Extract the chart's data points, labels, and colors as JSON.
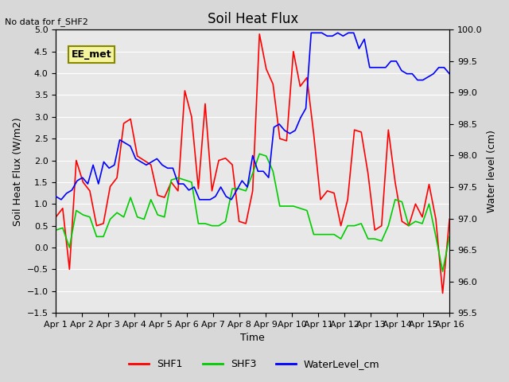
{
  "title": "Soil Heat Flux",
  "note": "No data for f_SHF2",
  "ylabel_left": "Soil Heat Flux (W/m2)",
  "ylabel_right": "Water level (cm)",
  "xlabel": "Time",
  "ylim_left": [
    -1.5,
    5.0
  ],
  "ylim_right": [
    95.5,
    100.0
  ],
  "yticks_left": [
    -1.5,
    -1.0,
    -0.5,
    0.0,
    0.5,
    1.0,
    1.5,
    2.0,
    2.5,
    3.0,
    3.5,
    4.0,
    4.5,
    5.0
  ],
  "yticks_right": [
    95.5,
    96.0,
    96.5,
    97.0,
    97.5,
    98.0,
    98.5,
    99.0,
    99.5,
    100.0
  ],
  "xtick_labels": [
    "Apr 1",
    "Apr 2",
    "Apr 3",
    "Apr 4",
    "Apr 5",
    "Apr 6",
    "Apr 7",
    "Apr 8",
    "Apr 9",
    "Apr 10",
    "Apr 11",
    "Apr 12",
    "Apr 13",
    "Apr 14",
    "Apr 15",
    "Apr 16"
  ],
  "background_color": "#e8e8e8",
  "plot_bg_color": "#f0f0f0",
  "legend_label": "EE_met",
  "colors": {
    "SHF1": "#ff0000",
    "SHF3": "#00cc00",
    "WaterLevel": "#0000ff"
  },
  "SHF1": [
    0.7,
    0.9,
    -0.5,
    2.0,
    1.5,
    1.3,
    0.5,
    0.55,
    1.4,
    1.6,
    2.85,
    2.95,
    2.1,
    2.0,
    1.9,
    1.2,
    1.15,
    1.5,
    1.3,
    3.6,
    3.0,
    1.35,
    3.3,
    1.3,
    2.0,
    2.05,
    1.9,
    0.6,
    0.55,
    1.3,
    4.9,
    4.1,
    3.75,
    2.5,
    2.45,
    4.5,
    3.7,
    3.9,
    2.6,
    1.1,
    1.3,
    1.25,
    0.5,
    1.1,
    2.7,
    2.65,
    1.7,
    0.4,
    0.5,
    2.7,
    1.5,
    0.6,
    0.5,
    1.0,
    0.7,
    1.45,
    0.65,
    -1.05,
    0.65
  ],
  "SHF3": [
    0.4,
    0.45,
    0.0,
    0.85,
    0.75,
    0.7,
    0.25,
    0.25,
    0.65,
    0.8,
    0.7,
    1.15,
    0.7,
    0.65,
    1.1,
    0.75,
    0.7,
    1.55,
    1.6,
    1.55,
    1.5,
    0.55,
    0.55,
    0.5,
    0.5,
    0.6,
    1.35,
    1.35,
    1.3,
    1.7,
    2.15,
    2.1,
    1.75,
    0.95,
    0.95,
    0.95,
    0.9,
    0.85,
    0.3,
    0.3,
    0.3,
    0.3,
    0.2,
    0.5,
    0.5,
    0.55,
    0.2,
    0.2,
    0.15,
    0.5,
    1.1,
    1.05,
    0.5,
    0.6,
    0.55,
    1.0,
    0.25,
    -0.55,
    0.25
  ],
  "WaterLevel": [
    97.35,
    97.3,
    97.4,
    97.45,
    97.6,
    97.65,
    97.55,
    97.85,
    97.55,
    97.9,
    97.8,
    97.85,
    98.25,
    98.2,
    98.15,
    97.95,
    97.9,
    97.85,
    97.9,
    97.95,
    97.85,
    97.8,
    97.8,
    97.55,
    97.55,
    97.45,
    97.5,
    97.3,
    97.3,
    97.3,
    97.35,
    97.5,
    97.35,
    97.3,
    97.45,
    97.6,
    97.5,
    98.0,
    97.75,
    97.75,
    97.65,
    98.45,
    98.5,
    98.4,
    98.35,
    98.4,
    98.6,
    98.75,
    99.95,
    99.95,
    99.95,
    99.9,
    99.9,
    99.95,
    99.9,
    99.95,
    99.95,
    99.7,
    99.85,
    99.4,
    99.4,
    99.4,
    99.4,
    99.5,
    99.5,
    99.35,
    99.3,
    99.3,
    99.2,
    99.2,
    99.25,
    99.3,
    99.4,
    99.4,
    99.3
  ]
}
